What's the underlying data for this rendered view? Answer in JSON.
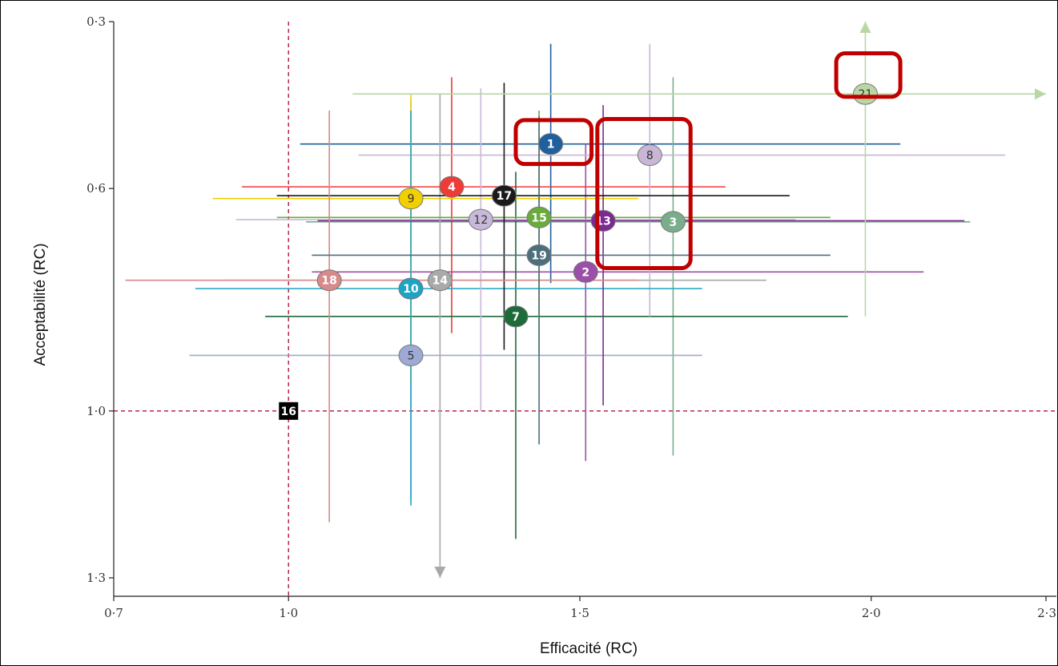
{
  "chart_data": {
    "type": "scatter",
    "xlabel": "Efficacité (RC)",
    "ylabel": "Acceptabilité (RC)",
    "xlim": [
      0.7,
      2.3
    ],
    "ylim": [
      0.3,
      1.3
    ],
    "y_inverted": true,
    "xticks": [
      {
        "value": 0.7,
        "label": "0·7"
      },
      {
        "value": 1.0,
        "label": "1·0"
      },
      {
        "value": 1.5,
        "label": "1·5"
      },
      {
        "value": 2.0,
        "label": "2·0"
      },
      {
        "value": 2.3,
        "label": "2·3"
      }
    ],
    "yticks": [
      {
        "value": 0.3,
        "label": "0·3"
      },
      {
        "value": 0.6,
        "label": "0·6"
      },
      {
        "value": 1.0,
        "label": "1·0"
      },
      {
        "value": 1.3,
        "label": "1·3"
      }
    ],
    "reference_lines": {
      "x": 1.0,
      "y": 1.0,
      "color": "#b5294a"
    },
    "highlight_boxes": [
      {
        "x": [
          1.39,
          1.52
        ],
        "y": [
          0.477,
          0.556
        ],
        "color": "#c00000"
      },
      {
        "x": [
          1.53,
          1.69
        ],
        "y": [
          0.475,
          0.743
        ],
        "color": "#c00000"
      },
      {
        "x": [
          1.94,
          2.05
        ],
        "y": [
          0.357,
          0.435
        ],
        "color": "#c00000"
      }
    ],
    "points": [
      {
        "id": "1",
        "x": 1.45,
        "y": 0.52,
        "xerr": [
          1.02,
          2.05
        ],
        "yerr": [
          0.34,
          0.77
        ],
        "color": "#1f5f9e",
        "marker": "circle"
      },
      {
        "id": "2",
        "x": 1.51,
        "y": 0.75,
        "xerr": [
          1.04,
          2.09
        ],
        "yerr": [
          0.52,
          1.09
        ],
        "color": "#9b4fa8",
        "marker": "circle"
      },
      {
        "id": "3",
        "x": 1.66,
        "y": 0.66,
        "xerr": [
          1.03,
          2.17
        ],
        "yerr": [
          0.4,
          1.08
        ],
        "color": "#7aad8c",
        "marker": "circle"
      },
      {
        "id": "4",
        "x": 1.28,
        "y": 0.597,
        "xerr": [
          0.92,
          1.75
        ],
        "yerr": [
          0.4,
          0.86
        ],
        "color": "#ef3b36",
        "marker": "circle"
      },
      {
        "id": "5",
        "x": 1.21,
        "y": 0.9,
        "xerr": [
          0.83,
          1.71
        ],
        "yerr": [
          0.44,
          1.16
        ],
        "color": "#9ea9d6",
        "marker": "circle"
      },
      {
        "id": "7",
        "x": 1.39,
        "y": 0.83,
        "xerr": [
          0.96,
          1.96
        ],
        "yerr": [
          0.57,
          1.23
        ],
        "color": "#1e6b3a",
        "marker": "circle"
      },
      {
        "id": "8",
        "x": 1.62,
        "y": 0.54,
        "xerr": [
          1.12,
          2.23
        ],
        "yerr": [
          0.34,
          0.83
        ],
        "color": "#c9b6d6",
        "marker": "circle"
      },
      {
        "id": "9",
        "x": 1.21,
        "y": 0.618,
        "xerr": [
          0.87,
          1.6
        ],
        "yerr": [
          0.43,
          0.95
        ],
        "color": "#f0d000",
        "marker": "circle"
      },
      {
        "id": "10",
        "x": 1.21,
        "y": 0.78,
        "xerr": [
          0.84,
          1.71
        ],
        "yerr": [
          0.46,
          1.17
        ],
        "color": "#1fa3c4",
        "marker": "circle"
      },
      {
        "id": "12",
        "x": 1.33,
        "y": 0.656,
        "xerr": [
          0.91,
          1.87
        ],
        "yerr": [
          0.42,
          1.0
        ],
        "color": "#c8b8d9",
        "marker": "circle"
      },
      {
        "id": "13",
        "x": 1.54,
        "y": 0.658,
        "xerr": [
          1.05,
          2.16
        ],
        "yerr": [
          0.45,
          0.99
        ],
        "color": "#7b2a8f",
        "marker": "circle"
      },
      {
        "id": "14",
        "x": 1.26,
        "y": 0.765,
        "xerr": [
          0.89,
          1.82
        ],
        "yerr": [
          0.43,
          1.3
        ],
        "color": "#a9a9a9",
        "marker": "circle"
      },
      {
        "id": "15",
        "x": 1.43,
        "y": 0.652,
        "xerr": [
          0.98,
          1.93
        ],
        "yerr": [
          0.46,
          0.9
        ],
        "color": "#6aac3c",
        "marker": "circle"
      },
      {
        "id": "16",
        "x": 1.0,
        "y": 1.0,
        "color": "#000000",
        "marker": "square"
      },
      {
        "id": "17",
        "x": 1.37,
        "y": 0.613,
        "xerr": [
          0.98,
          1.86
        ],
        "yerr": [
          0.41,
          0.89
        ],
        "color": "#1a1a1a",
        "marker": "circle"
      },
      {
        "id": "18",
        "x": 1.07,
        "y": 0.765,
        "xerr": [
          0.72,
          1.6
        ],
        "yerr": [
          0.46,
          1.2
        ],
        "color": "#d8898a",
        "marker": "circle"
      },
      {
        "id": "19",
        "x": 1.43,
        "y": 0.72,
        "xerr": [
          1.04,
          1.93
        ],
        "yerr": [
          0.47,
          1.06
        ],
        "color": "#4d6f7c",
        "marker": "circle"
      },
      {
        "id": "21",
        "x": 1.99,
        "y": 0.43,
        "xerr": [
          1.11,
          2.33
        ],
        "yerr": [
          0.3,
          0.83
        ],
        "color": "#b8d7a3",
        "marker": "circle"
      }
    ]
  }
}
